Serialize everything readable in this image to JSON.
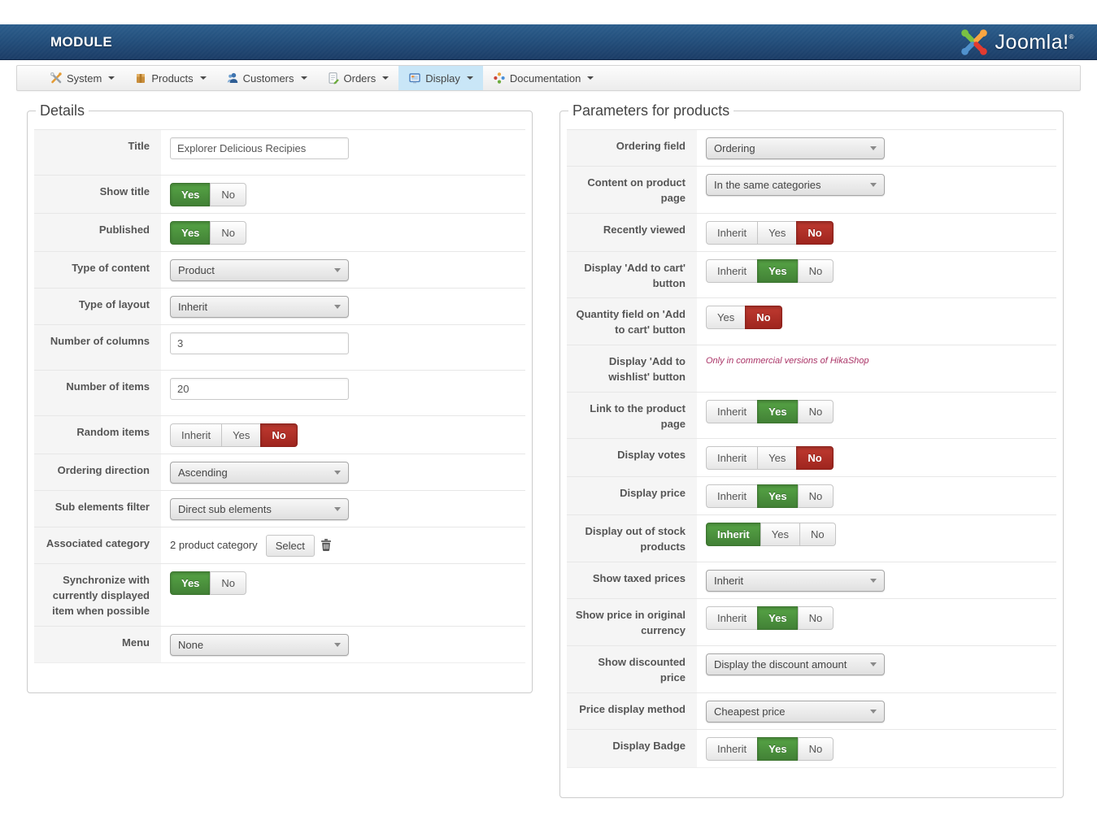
{
  "header": {
    "title": "MODULE",
    "logo_text": "Joomla!",
    "logo_reg": "®"
  },
  "menu": {
    "items": [
      {
        "label": "System",
        "icon": "system-tools-icon"
      },
      {
        "label": "Products",
        "icon": "products-box-icon"
      },
      {
        "label": "Customers",
        "icon": "customers-user-icon"
      },
      {
        "label": "Orders",
        "icon": "orders-document-icon"
      },
      {
        "label": "Display",
        "icon": "display-monitor-icon",
        "active": true
      },
      {
        "label": "Documentation",
        "icon": "documentation-star-icon"
      }
    ]
  },
  "details": {
    "legend": "Details",
    "rows": [
      {
        "label": "Title",
        "type": "text",
        "value": "Explorer Delicious Recipies"
      },
      {
        "label": "Show title",
        "type": "buttons",
        "options": [
          "Yes",
          "No"
        ],
        "selected": 0,
        "selected_color": "green"
      },
      {
        "label": "Published",
        "type": "buttons",
        "options": [
          "Yes",
          "No"
        ],
        "selected": 0,
        "selected_color": "green"
      },
      {
        "label": "Type of content",
        "type": "select",
        "value": "Product"
      },
      {
        "label": "Type of layout",
        "type": "select",
        "value": "Inherit"
      },
      {
        "label": "Number of columns",
        "type": "text",
        "value": "3"
      },
      {
        "label": "Number of items",
        "type": "text",
        "value": "20"
      },
      {
        "label": "Random items",
        "type": "buttons",
        "options": [
          "Inherit",
          "Yes",
          "No"
        ],
        "selected": 2,
        "selected_color": "red"
      },
      {
        "label": "Ordering direction",
        "type": "select",
        "value": "Ascending"
      },
      {
        "label": "Sub elements filter",
        "type": "select",
        "value": "Direct sub elements"
      },
      {
        "label": "Associated category",
        "type": "category",
        "text": "2 product category",
        "button_label": "Select",
        "icon": "trash-icon"
      },
      {
        "label": "Synchronize with currently displayed item when possible",
        "type": "buttons",
        "options": [
          "Yes",
          "No"
        ],
        "selected": 0,
        "selected_color": "green"
      },
      {
        "label": "Menu",
        "type": "select",
        "value": "None"
      }
    ]
  },
  "params": {
    "legend": "Parameters for products",
    "rows": [
      {
        "label": "Ordering field",
        "type": "select",
        "value": "Ordering"
      },
      {
        "label": "Content on product page",
        "type": "select",
        "value": "In the same categories"
      },
      {
        "label": "Recently viewed",
        "type": "buttons",
        "options": [
          "Inherit",
          "Yes",
          "No"
        ],
        "selected": 2,
        "selected_color": "red"
      },
      {
        "label": "Display 'Add to cart' button",
        "type": "buttons",
        "options": [
          "Inherit",
          "Yes",
          "No"
        ],
        "selected": 1,
        "selected_color": "green"
      },
      {
        "label": "Quantity field on 'Add to cart' button",
        "type": "buttons",
        "options": [
          "Yes",
          "No"
        ],
        "selected": 1,
        "selected_color": "red"
      },
      {
        "label": "Display 'Add to wishlist' button",
        "type": "note",
        "note": "Only in commercial versions of HikaShop"
      },
      {
        "label": "Link to the product page",
        "type": "buttons",
        "options": [
          "Inherit",
          "Yes",
          "No"
        ],
        "selected": 1,
        "selected_color": "green"
      },
      {
        "label": "Display votes",
        "type": "buttons",
        "options": [
          "Inherit",
          "Yes",
          "No"
        ],
        "selected": 2,
        "selected_color": "red"
      },
      {
        "label": "Display price",
        "type": "buttons",
        "options": [
          "Inherit",
          "Yes",
          "No"
        ],
        "selected": 1,
        "selected_color": "green"
      },
      {
        "label": "Display out of stock products",
        "type": "buttons",
        "options": [
          "Inherit",
          "Yes",
          "No"
        ],
        "selected": 0,
        "selected_color": "green"
      },
      {
        "label": "Show taxed prices",
        "type": "select",
        "value": "Inherit"
      },
      {
        "label": "Show price in original currency",
        "type": "buttons",
        "options": [
          "Inherit",
          "Yes",
          "No"
        ],
        "selected": 1,
        "selected_color": "green"
      },
      {
        "label": "Show discounted price",
        "type": "select",
        "value": "Display the discount amount"
      },
      {
        "label": "Price display method",
        "type": "select",
        "value": "Cheapest price"
      },
      {
        "label": "Display Badge",
        "type": "buttons",
        "options": [
          "Inherit",
          "Yes",
          "No"
        ],
        "selected": 1,
        "selected_color": "green"
      }
    ]
  },
  "colors": {
    "selected_green": "#4b923c",
    "selected_red": "#ab2b22",
    "menu_active_bg": "#c9e6f7",
    "header_blue": "#234f7c",
    "note_text": "#aa3366"
  }
}
